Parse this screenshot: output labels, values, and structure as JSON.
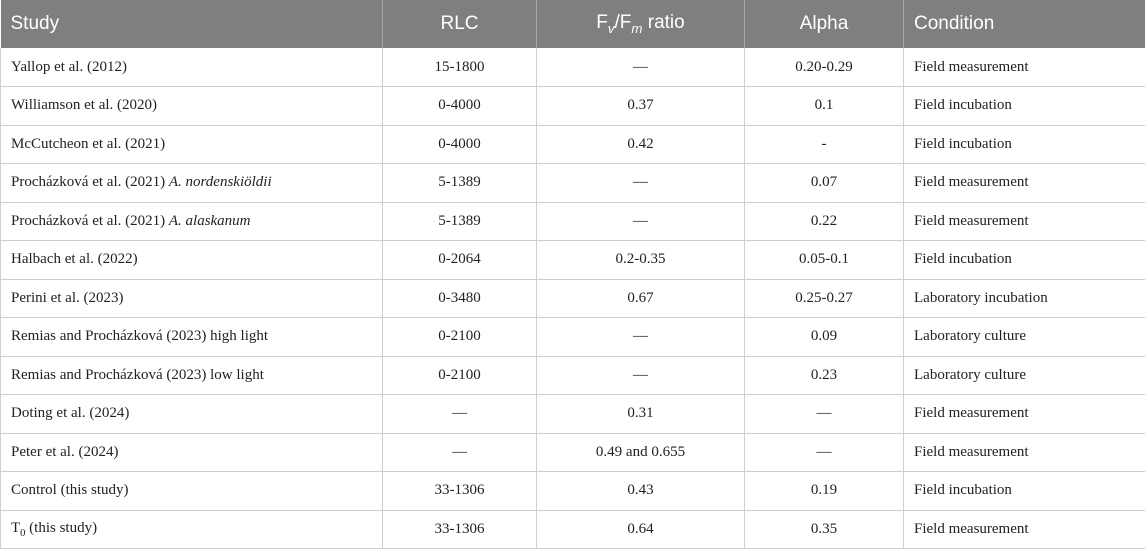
{
  "table": {
    "headers": {
      "study": "Study",
      "rlc": "RLC",
      "fvfm_f1": "F",
      "fvfm_v": "v",
      "fvfm_slash": "/F",
      "fvfm_m": "m",
      "fvfm_ratio": " ratio",
      "alpha": "Alpha",
      "condition": "Condition"
    },
    "rows": [
      {
        "study": "Yallop et al. (2012)",
        "species": "",
        "rlc": "15-1800",
        "fvfm": "—",
        "alpha": "0.20-0.29",
        "condition": "Field measurement"
      },
      {
        "study": "Williamson et al. (2020)",
        "species": "",
        "rlc": "0-4000",
        "fvfm": "0.37",
        "alpha": "0.1",
        "condition": "Field incubation"
      },
      {
        "study": "McCutcheon et al. (2021)",
        "species": "",
        "rlc": "0-4000",
        "fvfm": "0.42",
        "alpha": "-",
        "condition": "Field incubation"
      },
      {
        "study": "Procházková et al. (2021) ",
        "species": "A. nordenskiöldii",
        "rlc": "5-1389",
        "fvfm": "—",
        "alpha": "0.07",
        "condition": "Field measurement"
      },
      {
        "study": "Procházková et al. (2021) ",
        "species": "A. alaskanum",
        "rlc": "5-1389",
        "fvfm": "—",
        "alpha": "0.22",
        "condition": "Field measurement"
      },
      {
        "study": "Halbach et al. (2022)",
        "species": "",
        "rlc": "0-2064",
        "fvfm": "0.2-0.35",
        "alpha": "0.05-0.1",
        "condition": "Field incubation"
      },
      {
        "study": "Perini et al. (2023)",
        "species": "",
        "rlc": "0-3480",
        "fvfm": "0.67",
        "alpha": "0.25-0.27",
        "condition": "Laboratory incubation"
      },
      {
        "study": "Remias and Procházková (2023) high light",
        "species": "",
        "rlc": "0-2100",
        "fvfm": "—",
        "alpha": "0.09",
        "condition": "Laboratory culture"
      },
      {
        "study": "Remias and Procházková (2023) low light",
        "species": "",
        "rlc": "0-2100",
        "fvfm": "—",
        "alpha": "0.23",
        "condition": "Laboratory culture"
      },
      {
        "study": "Doting et al. (2024)",
        "species": "",
        "rlc": "—",
        "fvfm": "0.31",
        "alpha": "—",
        "condition": "Field measurement"
      },
      {
        "study": "Peter et al. (2024)",
        "species": "",
        "rlc": "—",
        "fvfm": "0.49 and 0.655",
        "alpha": "—",
        "condition": "Field measurement"
      },
      {
        "study": "Control (this study)",
        "species": "",
        "rlc": "33-1306",
        "fvfm": "0.43",
        "alpha": "0.19",
        "condition": "Field incubation"
      },
      {
        "study": "T",
        "study_sub": "0",
        "study_tail": " (this study)",
        "species": "",
        "rlc": "33-1306",
        "fvfm": "0.64",
        "alpha": "0.35",
        "condition": "Field measurement"
      }
    ]
  }
}
